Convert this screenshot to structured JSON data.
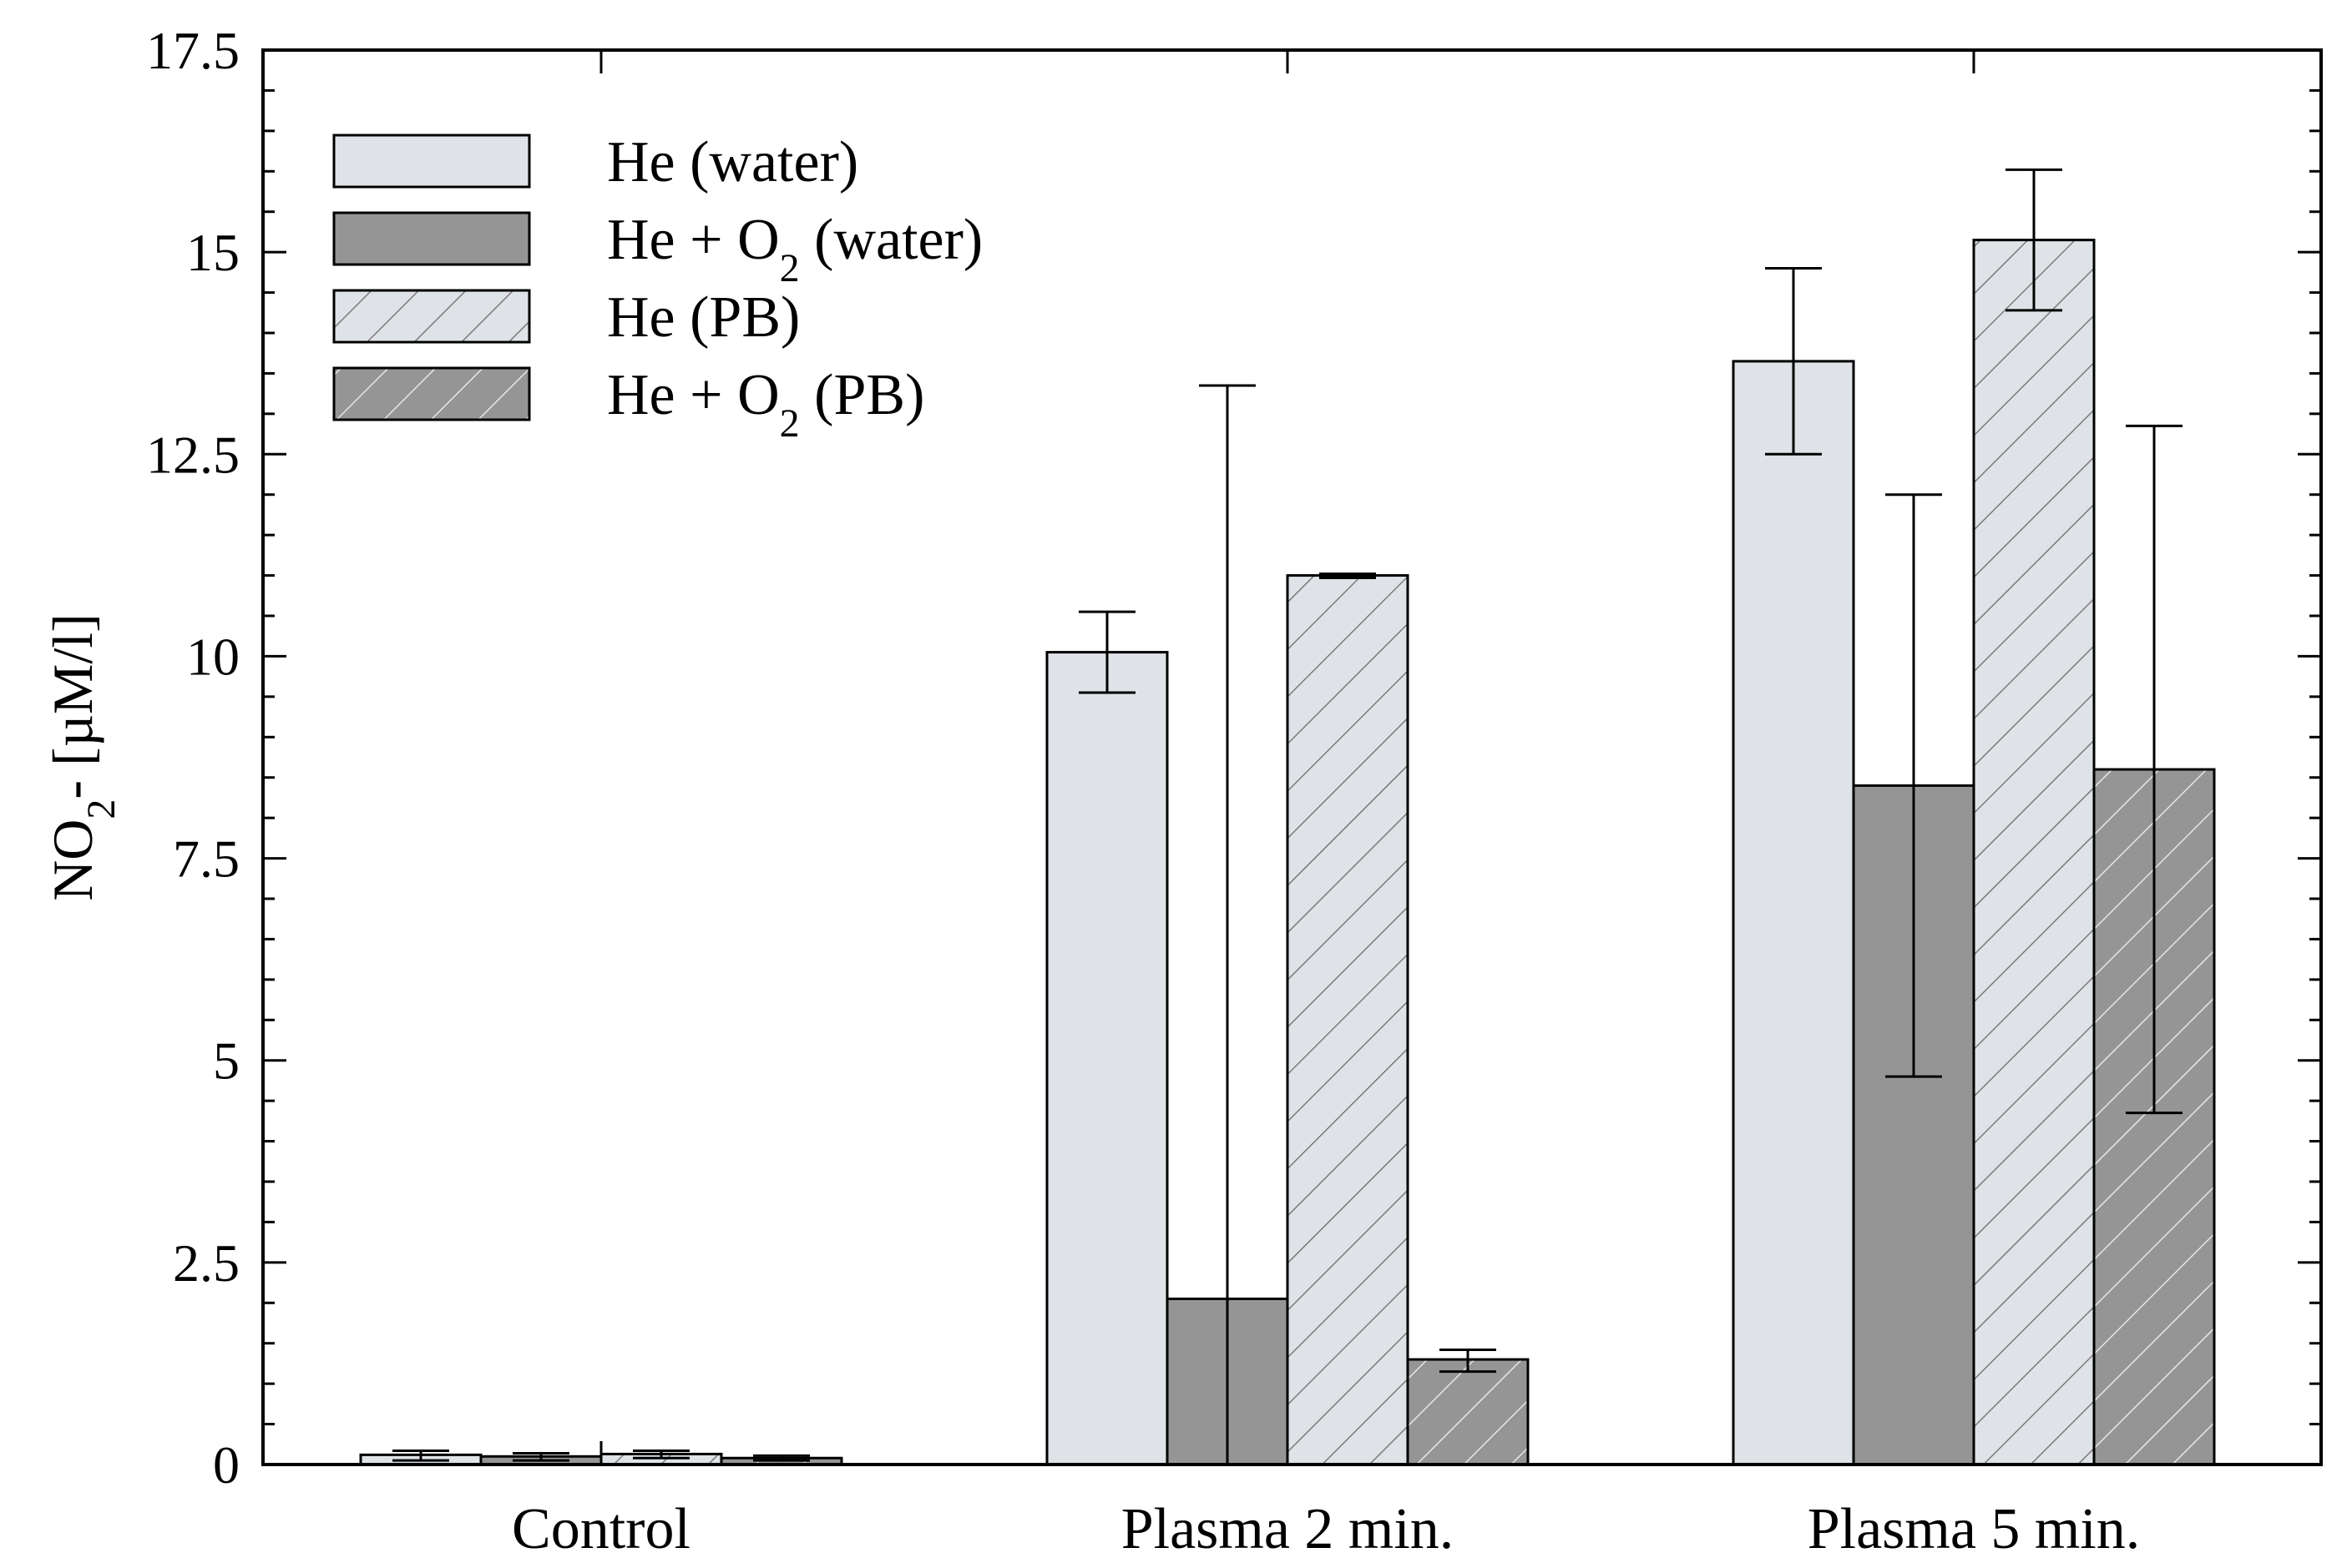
{
  "chart_data": {
    "type": "bar",
    "title": "",
    "xlabel": "",
    "ylabel_main": "NO",
    "ylabel_sub": "2",
    "ylabel_rest": "- [µM/l]",
    "categories": [
      "Control",
      "Plasma 2 min.",
      "Plasma 5 min."
    ],
    "ylim": [
      0,
      17.5
    ],
    "yticks": [
      0,
      2.5,
      5,
      7.5,
      10,
      12.5,
      15,
      17.5
    ],
    "ytick_labels": [
      "0",
      "2.5",
      "5",
      "7.5",
      "10",
      "12.5",
      "15",
      "17.5"
    ],
    "grid": false,
    "legend_position": "top-left",
    "series": [
      {
        "name": "He (water)",
        "name_main": "He (water)",
        "name_sub": "",
        "name_rest": "",
        "values": [
          0.12,
          10.05,
          13.65
        ],
        "err_low": [
          0.05,
          9.55,
          12.5
        ],
        "err_high": [
          0.17,
          10.55,
          14.8
        ],
        "fill": "#dfe2e6",
        "hatch": false
      },
      {
        "name": "He + O2 (water)",
        "name_main": "He + O",
        "name_sub": "2",
        "name_rest": " (water)",
        "values": [
          0.1,
          2.05,
          8.4
        ],
        "err_low": [
          0.05,
          0,
          4.8
        ],
        "err_high": [
          0.14,
          13.35,
          12.0
        ],
        "fill": "#959595",
        "hatch": false
      },
      {
        "name": "He (PB)",
        "name_main": "He (PB)",
        "name_sub": "",
        "name_rest": "",
        "values": [
          0.13,
          11.0,
          15.15
        ],
        "err_low": [
          0.08,
          10.97,
          14.28
        ],
        "err_high": [
          0.17,
          11.02,
          16.02
        ],
        "fill": "#dfe2e6",
        "hatch": true
      },
      {
        "name": "He + O2 (PB)",
        "name_main": "He + O",
        "name_sub": "2",
        "name_rest": " (PB)",
        "values": [
          0.08,
          1.3,
          8.6
        ],
        "err_low": [
          0.05,
          1.15,
          4.35
        ],
        "err_high": [
          0.11,
          1.42,
          12.85
        ],
        "fill": "#959595",
        "hatch": true
      }
    ]
  }
}
